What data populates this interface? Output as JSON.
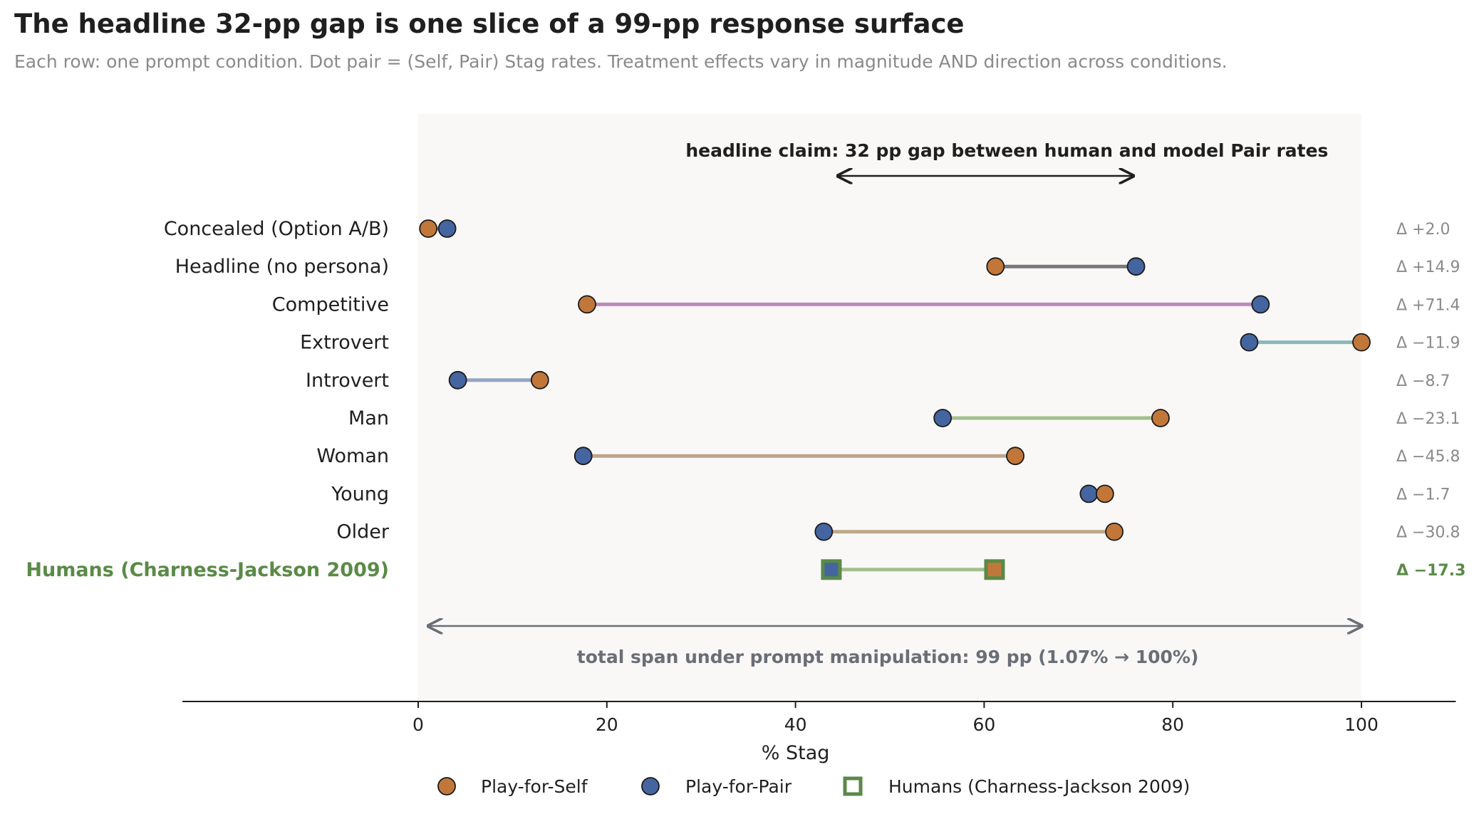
{
  "chart_data": {
    "type": "dumbbell",
    "title": "The headline 32-pp gap is one slice of a 99-pp response surface",
    "subtitle": "Each row: one prompt condition. Dot pair = (Self, Pair) Stag rates. Treatment effects vary in magnitude AND direction across conditions.",
    "xlabel": "% Stag",
    "xlim": [
      -25,
      110
    ],
    "xticks": [
      0,
      20,
      40,
      60,
      80,
      100
    ],
    "grid": false,
    "legend_position": "bottom",
    "series": [
      {
        "name": "Play-for-Self",
        "color": "#c2773a",
        "marker": "circle"
      },
      {
        "name": "Play-for-Pair",
        "color": "#4565a0",
        "marker": "circle"
      },
      {
        "name": "Humans (Charness-Jackson 2009)",
        "color": "#5a8a47",
        "marker": "square"
      }
    ],
    "rows": [
      {
        "label": "Concealed (Option A/B)",
        "self": 1.07,
        "pair": 3.07,
        "delta_label": "Δ +2.0",
        "line_color": "#8a9bb8",
        "human": false
      },
      {
        "label": "Headline (no persona)",
        "self": 61.2,
        "pair": 76.1,
        "delta_label": "Δ +14.9",
        "line_color": "#77777c",
        "human": false
      },
      {
        "label": "Competitive",
        "self": 17.9,
        "pair": 89.3,
        "delta_label": "Δ +71.4",
        "line_color": "#bd8ab8",
        "human": false
      },
      {
        "label": "Extrovert",
        "self": 100,
        "pair": 88.1,
        "delta_label": "Δ −11.9",
        "line_color": "#8ab8b8",
        "human": false
      },
      {
        "label": "Introvert",
        "self": 12.9,
        "pair": 4.2,
        "delta_label": "Δ −8.7",
        "line_color": "#93a5c4",
        "human": false
      },
      {
        "label": "Man",
        "self": 78.7,
        "pair": 55.6,
        "delta_label": "Δ −23.1",
        "line_color": "#a3bf8f",
        "human": false
      },
      {
        "label": "Woman",
        "self": 63.3,
        "pair": 17.5,
        "delta_label": "Δ −45.8",
        "line_color": "#bfa38a",
        "human": false
      },
      {
        "label": "Young",
        "self": 72.8,
        "pair": 71.1,
        "delta_label": "Δ −1.7",
        "line_color": "#bfa8a0",
        "human": false
      },
      {
        "label": "Older",
        "self": 73.8,
        "pair": 43.0,
        "delta_label": "Δ −30.8",
        "line_color": "#bfaa8a",
        "human": false
      },
      {
        "label": "Humans (Charness-Jackson 2009)",
        "self": 61.1,
        "pair": 43.8,
        "delta_label": "Δ −17.3",
        "line_color": "#a3bf8f",
        "human": true
      }
    ],
    "annotations": {
      "headline": {
        "text": "headline claim: 32 pp gap between human and model Pair rates",
        "from": 44.5,
        "to": 75.8
      },
      "span": {
        "text": "total span under prompt manipulation: 99 pp (1.07% → 100%)",
        "from": 1.07,
        "to": 100
      }
    }
  }
}
